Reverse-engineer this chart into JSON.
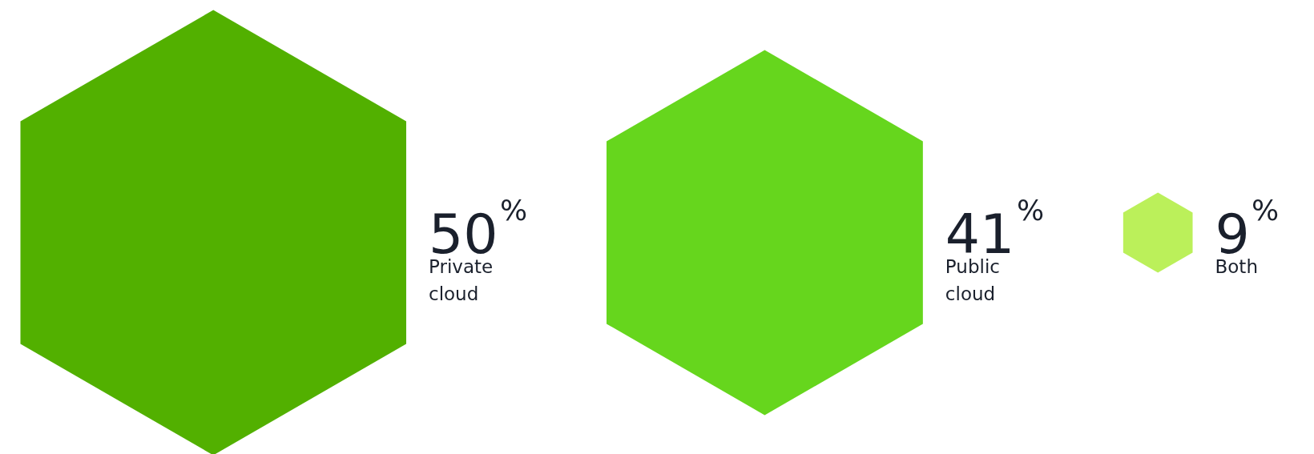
{
  "chart_data": {
    "type": "other",
    "categories": [
      "Private cloud",
      "Public cloud",
      "Both"
    ],
    "values": [
      50,
      41,
      9
    ],
    "value_labels": [
      "50%",
      "41%",
      "9%"
    ],
    "colors": [
      "#52b000",
      "#66d61d",
      "#bbf05a"
    ]
  }
}
